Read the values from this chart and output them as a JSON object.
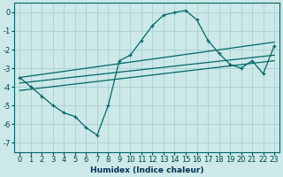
{
  "xlabel": "Humidex (Indice chaleur)",
  "bg_color": "#cce8e8",
  "grid_color": "#aad0d0",
  "line_color": "#006868",
  "xlim": [
    -0.5,
    23.5
  ],
  "ylim": [
    -7.5,
    0.5
  ],
  "xtick_labels": [
    "0",
    "1",
    "2",
    "3",
    "4",
    "5",
    "6",
    "7",
    "8",
    "9",
    "10",
    "11",
    "12",
    "13",
    "14",
    "15",
    "16",
    "17",
    "18",
    "19",
    "20",
    "21",
    "22",
    "23"
  ],
  "xtick_values": [
    0,
    1,
    2,
    3,
    4,
    5,
    6,
    7,
    8,
    9,
    10,
    11,
    12,
    13,
    14,
    15,
    16,
    17,
    18,
    19,
    20,
    21,
    22,
    23
  ],
  "yticks": [
    0,
    -1,
    -2,
    -3,
    -4,
    -5,
    -6,
    -7
  ],
  "curve1_x": [
    0,
    1,
    2,
    3,
    4,
    5,
    6,
    7,
    8,
    9,
    10,
    11,
    12,
    13,
    14,
    15,
    16,
    17,
    18,
    19,
    20,
    21,
    22,
    23
  ],
  "curve1_y": [
    -3.5,
    -4.0,
    -4.5,
    -5.0,
    -5.4,
    -5.6,
    -6.2,
    -6.6,
    -5.0,
    -2.6,
    -2.3,
    -1.5,
    -0.7,
    -0.15,
    0.0,
    0.1,
    -0.4,
    -1.5,
    -2.2,
    -2.8,
    -3.0,
    -2.6,
    -3.3,
    -1.8
  ],
  "line1_x": [
    0,
    23
  ],
  "line1_y": [
    -3.5,
    -1.6
  ],
  "line2_x": [
    0,
    23
  ],
  "line2_y": [
    -3.8,
    -2.3
  ],
  "line3_x": [
    0,
    23
  ],
  "line3_y": [
    -4.2,
    -2.6
  ]
}
